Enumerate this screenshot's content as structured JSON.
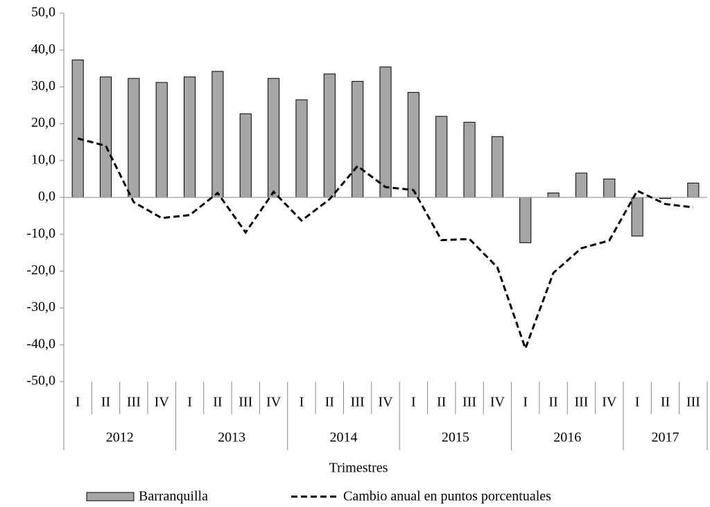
{
  "chart_data": {
    "type": "bar_line",
    "x_label": "Trimestres",
    "groups": [
      {
        "label": "2012",
        "categories": [
          "I",
          "II",
          "III",
          "IV"
        ]
      },
      {
        "label": "2013",
        "categories": [
          "I",
          "II",
          "III",
          "IV"
        ]
      },
      {
        "label": "2014",
        "categories": [
          "I",
          "II",
          "III",
          "IV"
        ]
      },
      {
        "label": "2015",
        "categories": [
          "I",
          "II",
          "III",
          "IV"
        ]
      },
      {
        "label": "2016",
        "categories": [
          "I",
          "II",
          "III",
          "IV"
        ]
      },
      {
        "label": "2017",
        "categories": [
          "I",
          "II",
          "III"
        ]
      }
    ],
    "series": [
      {
        "name": "Barranquilla",
        "type": "bar",
        "color": "#a6a6a6",
        "values": [
          37.3,
          32.7,
          32.3,
          31.2,
          32.7,
          34.2,
          22.7,
          32.3,
          26.5,
          33.5,
          31.5,
          35.4,
          28.5,
          22.0,
          20.4,
          16.5,
          -12.3,
          1.2,
          6.6,
          5.0,
          -10.5,
          -0.3,
          3.9
        ]
      },
      {
        "name": "Cambio anual en puntos porcentuales",
        "type": "line",
        "color": "#000000",
        "values": [
          16.0,
          14.0,
          -1.3,
          -5.6,
          -4.8,
          1.2,
          -9.5,
          1.5,
          -6.3,
          -0.5,
          8.5,
          2.8,
          2.0,
          -11.6,
          -11.3,
          -19.0,
          -41.0,
          -20.5,
          -13.8,
          -11.7,
          1.8,
          -1.8,
          -2.7
        ]
      }
    ],
    "ylim": [
      -50,
      50
    ],
    "yticks": [
      {
        "value": -50,
        "label": "-50,0"
      },
      {
        "value": -40,
        "label": "-40,0"
      },
      {
        "value": -30,
        "label": "-30,0"
      },
      {
        "value": -20,
        "label": "-20,0"
      },
      {
        "value": -10,
        "label": "-10,0"
      },
      {
        "value": 0,
        "label": "0,0"
      },
      {
        "value": 10,
        "label": "10,0"
      },
      {
        "value": 20,
        "label": "20,0"
      },
      {
        "value": 30,
        "label": "30,0"
      },
      {
        "value": 40,
        "label": "40,0"
      },
      {
        "value": 50,
        "label": "50,0"
      }
    ],
    "grid": false,
    "legend": "bottom"
  }
}
